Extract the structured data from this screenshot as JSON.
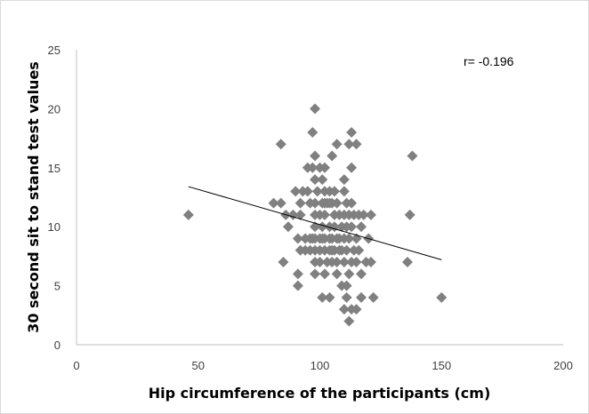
{
  "chart_data": {
    "type": "scatter",
    "xlabel": "Hip circumference of the participants (cm)",
    "ylabel": "30 second sit to stand test values",
    "xlim": [
      0,
      200
    ],
    "ylim": [
      0,
      25
    ],
    "x_ticks": [
      "0",
      "50",
      "100",
      "150",
      "200"
    ],
    "y_ticks": [
      "0",
      "5",
      "10",
      "15",
      "20",
      "25"
    ],
    "grid": false,
    "legend": "none",
    "annotation": "r= -0.196",
    "trendline": {
      "type": "linear",
      "x": [
        46,
        150
      ],
      "y": [
        13.4,
        7.2
      ]
    },
    "marker_color": "#808080",
    "points": [
      [
        46,
        11
      ],
      [
        84,
        17
      ],
      [
        85,
        7
      ],
      [
        86,
        11
      ],
      [
        81,
        12
      ],
      [
        84,
        12
      ],
      [
        87,
        10
      ],
      [
        89,
        11
      ],
      [
        90,
        13
      ],
      [
        91,
        6
      ],
      [
        91,
        5
      ],
      [
        91,
        9
      ],
      [
        92,
        8
      ],
      [
        92,
        11
      ],
      [
        92,
        12
      ],
      [
        93,
        13
      ],
      [
        94,
        8
      ],
      [
        94,
        9
      ],
      [
        95,
        15
      ],
      [
        95,
        13
      ],
      [
        96,
        12
      ],
      [
        96,
        9
      ],
      [
        96,
        8
      ],
      [
        97,
        18
      ],
      [
        97,
        15
      ],
      [
        97,
        9
      ],
      [
        98,
        20
      ],
      [
        98,
        16
      ],
      [
        98,
        14
      ],
      [
        98,
        12
      ],
      [
        98,
        11
      ],
      [
        98,
        10
      ],
      [
        98,
        9
      ],
      [
        98,
        8
      ],
      [
        98,
        7
      ],
      [
        98,
        6
      ],
      [
        99,
        13
      ],
      [
        100,
        15
      ],
      [
        100,
        11
      ],
      [
        100,
        9
      ],
      [
        100,
        8
      ],
      [
        100,
        7
      ],
      [
        101,
        14
      ],
      [
        101,
        12
      ],
      [
        101,
        10
      ],
      [
        101,
        9
      ],
      [
        101,
        4
      ],
      [
        102,
        15
      ],
      [
        102,
        13
      ],
      [
        102,
        12
      ],
      [
        102,
        11
      ],
      [
        102,
        9
      ],
      [
        102,
        8
      ],
      [
        102,
        6
      ],
      [
        103,
        7
      ],
      [
        103,
        12
      ],
      [
        104,
        13
      ],
      [
        104,
        12
      ],
      [
        104,
        10
      ],
      [
        104,
        9
      ],
      [
        104,
        8
      ],
      [
        104,
        4
      ],
      [
        105,
        16
      ],
      [
        105,
        12
      ],
      [
        105,
        9
      ],
      [
        105,
        8
      ],
      [
        105,
        7
      ],
      [
        106,
        13
      ],
      [
        106,
        11
      ],
      [
        106,
        10
      ],
      [
        106,
        8
      ],
      [
        107,
        17
      ],
      [
        107,
        12
      ],
      [
        107,
        9
      ],
      [
        107,
        7
      ],
      [
        107,
        6
      ],
      [
        108,
        11
      ],
      [
        108,
        9
      ],
      [
        108,
        8
      ],
      [
        109,
        10
      ],
      [
        109,
        8
      ],
      [
        109,
        5
      ],
      [
        110,
        14
      ],
      [
        110,
        13
      ],
      [
        110,
        11
      ],
      [
        110,
        9
      ],
      [
        110,
        7
      ],
      [
        110,
        3
      ],
      [
        111,
        12
      ],
      [
        111,
        10
      ],
      [
        111,
        8
      ],
      [
        111,
        5
      ],
      [
        111,
        4
      ],
      [
        112,
        17
      ],
      [
        112,
        11
      ],
      [
        112,
        9
      ],
      [
        112,
        6
      ],
      [
        112,
        2
      ],
      [
        113,
        18
      ],
      [
        113,
        15
      ],
      [
        113,
        12
      ],
      [
        113,
        10
      ],
      [
        113,
        7
      ],
      [
        113,
        3
      ],
      [
        114,
        11
      ],
      [
        114,
        8
      ],
      [
        115,
        17
      ],
      [
        115,
        9
      ],
      [
        115,
        7
      ],
      [
        115,
        3
      ],
      [
        116,
        11
      ],
      [
        116,
        8
      ],
      [
        117,
        10
      ],
      [
        117,
        6
      ],
      [
        117,
        4
      ],
      [
        118,
        11
      ],
      [
        119,
        7
      ],
      [
        120,
        9
      ],
      [
        121,
        11
      ],
      [
        121,
        7
      ],
      [
        122,
        4
      ],
      [
        136,
        7
      ],
      [
        137,
        11
      ],
      [
        138,
        16
      ],
      [
        150,
        4
      ]
    ]
  }
}
